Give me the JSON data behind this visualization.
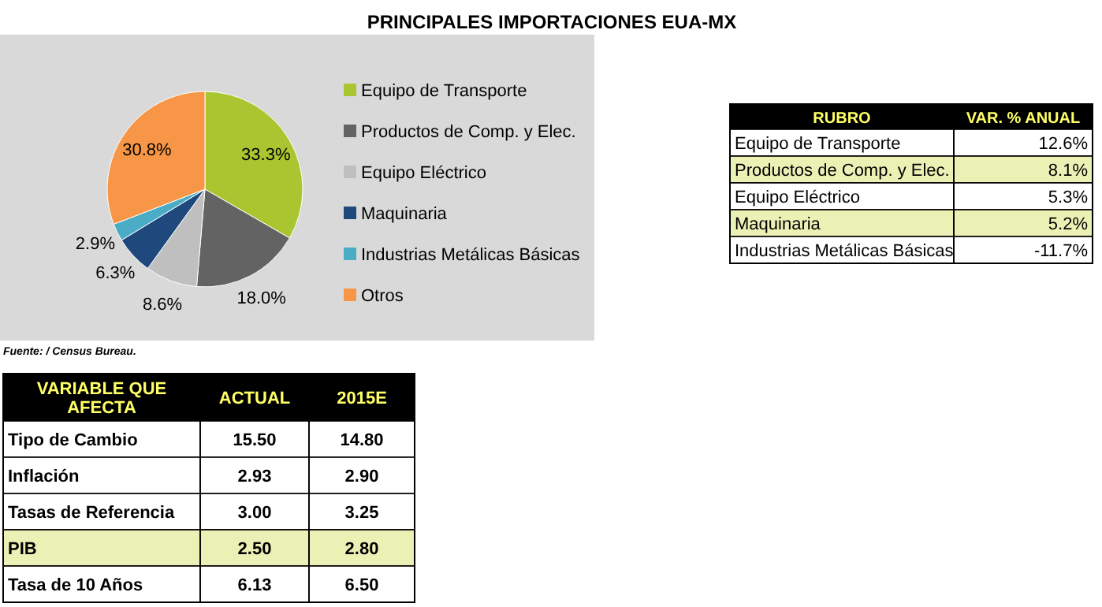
{
  "chart_data": [
    {
      "type": "pie",
      "title": "PRINCIPALES IMPORTACIONES EUA-MX",
      "categories": [
        "Equipo de Transporte",
        "Productos de Comp. y Elec.",
        "Equipo Eléctrico",
        "Maquinaria",
        "Industrias Metálicas Básicas",
        "Otros"
      ],
      "values": [
        33.3,
        18.0,
        8.6,
        6.3,
        2.9,
        30.8
      ],
      "value_labels": [
        "33.3%",
        "18.0%",
        "8.6%",
        "6.3%",
        "2.9%",
        "30.8%"
      ],
      "colors": [
        "#a9c52f",
        "#636363",
        "#bfbfbf",
        "#1f497d",
        "#4bacc6",
        "#f79646"
      ],
      "legend": "right",
      "annotations": [
        "Fuente: / Census Bureau."
      ]
    },
    {
      "type": "other",
      "xlabel": "RUBRO",
      "categories": [
        "Equipo de Transporte",
        "Productos de Comp. y Elec.",
        "Equipo Eléctrico",
        "Maquinaria",
        "Industrias Metálicas Básicas"
      ],
      "colors": [
        "#ffffff",
        "#ebf1b5",
        "#ffffff",
        "#ebf1b5",
        "#ffffff"
      ],
      "series": [
        {
          "name": "VAR. % ANUAL",
          "colors": [
            "#ffffff",
            "#ebf1b5",
            "#ffffff",
            "#ebf1b5",
            "#ffffff"
          ],
          "values": [
            12.6,
            8.1,
            5.3,
            5.2,
            -11.7
          ],
          "value_labels": [
            "12.6%",
            "8.1%",
            "5.3%",
            "5.2%",
            "-11.7%"
          ]
        }
      ]
    },
    {
      "type": "other",
      "xlabel": "VARIABLE QUE AFECTA",
      "categories": [
        "Tipo de Cambio",
        "Inflación",
        "Tasas de Referencia",
        "PIB",
        "Tasa de 10 Años"
      ],
      "colors": [
        "#ffffff",
        "#ffffff",
        "#ffffff",
        "#ebf1b5",
        "#ffffff"
      ],
      "series": [
        {
          "name": "ACTUAL",
          "colors": [
            "#ffffff",
            "#ffffff",
            "#ffffff",
            "#ebf1b5",
            "#ffffff"
          ],
          "values": [
            15.5,
            2.93,
            3.0,
            2.5,
            6.13
          ],
          "value_labels": [
            "15.50",
            "2.93",
            "3.00",
            "2.50",
            "6.13"
          ]
        },
        {
          "name": "2015E",
          "colors": [
            "#ffffff",
            "#ffffff",
            "#ffffff",
            "#ebf1b5",
            "#ffffff"
          ],
          "values": [
            14.8,
            2.9,
            3.25,
            2.8,
            6.5
          ],
          "value_labels": [
            "14.80",
            "2.90",
            "3.25",
            "2.80",
            "6.50"
          ]
        }
      ]
    }
  ]
}
